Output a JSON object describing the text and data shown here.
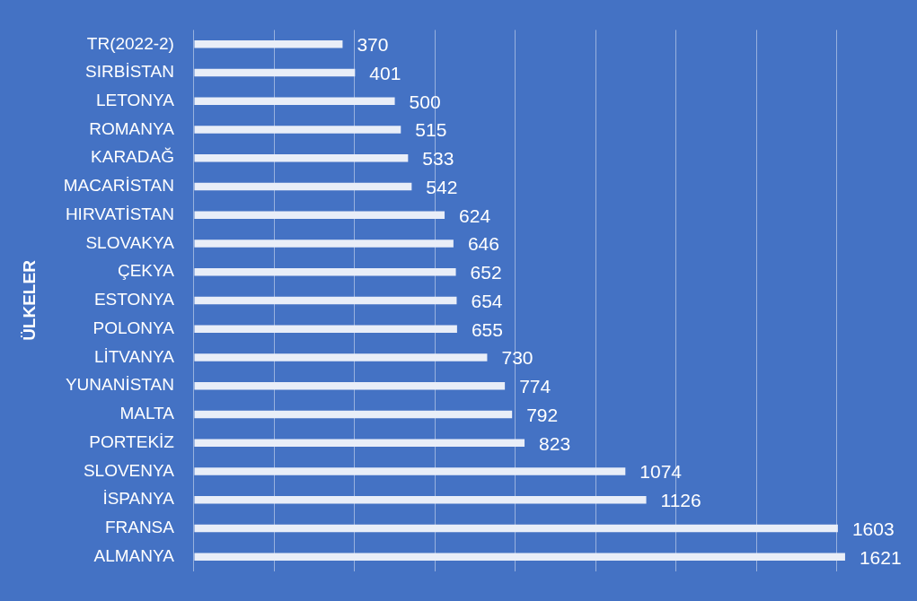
{
  "chart_data": {
    "type": "bar",
    "orientation": "horizontal",
    "ylabel": "ÜLKELER",
    "categories": [
      "TR(2022-2)",
      "SIRBİSTAN",
      "LETONYA",
      "ROMANYA",
      "KARADAĞ",
      "MACARİSTAN",
      "HIRVATİSTAN",
      "SLOVAKYA",
      "ÇEKYA",
      "ESTONYA",
      "POLONYA",
      "LİTVANYA",
      "YUNANİSTAN",
      "MALTA",
      "PORTEKİZ",
      "SLOVENYA",
      "İSPANYA",
      "FRANSA",
      "ALMANYA"
    ],
    "values": [
      370,
      401,
      500,
      515,
      533,
      542,
      624,
      646,
      652,
      654,
      655,
      730,
      774,
      792,
      823,
      1074,
      1126,
      1603,
      1621
    ],
    "color": "#e9eef8",
    "tick_labels": "y",
    "grid": "x",
    "data_labels": true,
    "legend": false
  }
}
